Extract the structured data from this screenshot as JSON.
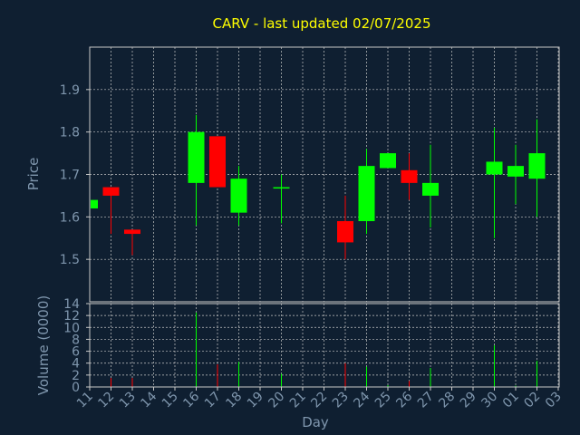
{
  "colors": {
    "background": "#0f1f31",
    "title": "#ffff00",
    "text": "#7f96ad",
    "frame": "#c8c8c8",
    "up": "#00ff00",
    "down": "#ff0000"
  },
  "chart_data": [
    {
      "type": "candlestick",
      "title": "CARV - last updated 02/07/2025",
      "xlabel": "",
      "ylabel": "Price",
      "ylim": [
        1.4,
        2.0
      ],
      "yticks": [
        "1.5",
        "1.6",
        "1.7",
        "1.8",
        "1.9"
      ],
      "ytick_values": [
        1.5,
        1.6,
        1.7,
        1.8,
        1.9
      ],
      "grid": true,
      "candles": [
        {
          "day": "11",
          "open": 1.62,
          "high": 1.64,
          "low": 1.62,
          "close": 1.64
        },
        {
          "day": "12",
          "open": 1.67,
          "high": 1.67,
          "low": 1.56,
          "close": 1.65
        },
        {
          "day": "13",
          "open": 1.57,
          "high": 1.57,
          "low": 1.51,
          "close": 1.56
        },
        {
          "day": "16",
          "open": 1.68,
          "high": 1.84,
          "low": 1.58,
          "close": 1.8
        },
        {
          "day": "17",
          "open": 1.79,
          "high": 1.79,
          "low": 1.67,
          "close": 1.67
        },
        {
          "day": "18",
          "open": 1.61,
          "high": 1.72,
          "low": 1.58,
          "close": 1.69
        },
        {
          "day": "20",
          "open": 1.67,
          "high": 1.7,
          "low": 1.585,
          "close": 1.67
        },
        {
          "day": "23",
          "open": 1.59,
          "high": 1.65,
          "low": 1.5,
          "close": 1.54
        },
        {
          "day": "24",
          "open": 1.59,
          "high": 1.76,
          "low": 1.56,
          "close": 1.72
        },
        {
          "day": "25",
          "open": 1.715,
          "high": 1.75,
          "low": 1.715,
          "close": 1.75
        },
        {
          "day": "26",
          "open": 1.71,
          "high": 1.75,
          "low": 1.64,
          "close": 1.68
        },
        {
          "day": "27",
          "open": 1.65,
          "high": 1.77,
          "low": 1.575,
          "close": 1.68
        },
        {
          "day": "30",
          "open": 1.7,
          "high": 1.81,
          "low": 1.55,
          "close": 1.73
        },
        {
          "day": "01",
          "open": 1.695,
          "high": 1.77,
          "low": 1.63,
          "close": 1.72
        },
        {
          "day": "02",
          "open": 1.69,
          "high": 1.83,
          "low": 1.6,
          "close": 1.75
        }
      ]
    },
    {
      "type": "bar",
      "title": "",
      "xlabel": "Day",
      "ylabel": "Volume (0000)",
      "ylim": [
        0,
        14
      ],
      "yticks": [
        "0",
        "2",
        "4",
        "6",
        "8",
        "10",
        "12",
        "14"
      ],
      "ytick_values": [
        0,
        2,
        4,
        6,
        8,
        10,
        12,
        14
      ],
      "grid": true,
      "categories": [
        "11",
        "12",
        "13",
        "14",
        "15",
        "16",
        "17",
        "18",
        "19",
        "20",
        "21",
        "22",
        "23",
        "24",
        "25",
        "26",
        "27",
        "28",
        "29",
        "30",
        "01",
        "02",
        "03"
      ],
      "values": [
        0.5,
        1.5,
        1.5,
        0,
        0,
        12.5,
        3.8,
        4.2,
        0,
        2.2,
        0,
        0,
        4.0,
        3.4,
        0.3,
        1.0,
        3.2,
        0,
        0,
        7.0,
        0.2,
        4.4,
        0
      ],
      "bar_colors": [
        "up",
        "down",
        "down",
        "up",
        "up",
        "up",
        "down",
        "up",
        "up",
        "up",
        "up",
        "up",
        "down",
        "up",
        "up",
        "down",
        "up",
        "up",
        "up",
        "up",
        "up",
        "up",
        "up"
      ]
    }
  ]
}
